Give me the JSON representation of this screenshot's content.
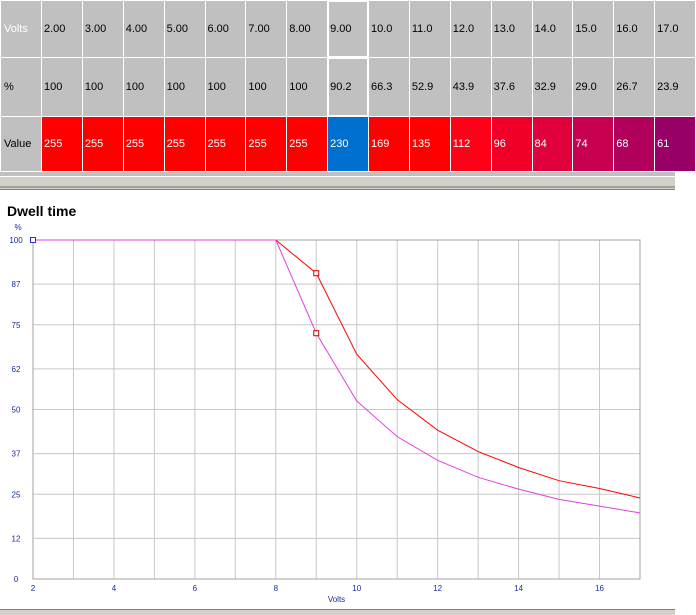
{
  "table": {
    "row_volts": {
      "label": "Volts",
      "cells": [
        "2.00",
        "3.00",
        "4.00",
        "5.00",
        "6.00",
        "7.00",
        "8.00",
        "9.00",
        "10.0",
        "11.0",
        "12.0",
        "13.0",
        "14.0",
        "15.0",
        "16.0",
        "17.0"
      ]
    },
    "row_pct": {
      "label": "%",
      "cells": [
        "100",
        "100",
        "100",
        "100",
        "100",
        "100",
        "100",
        "90.2",
        "66.3",
        "52.9",
        "43.9",
        "37.6",
        "32.9",
        "29.0",
        "26.7",
        "23.9"
      ]
    },
    "row_value": {
      "label": "Value",
      "cells": [
        "255",
        "255",
        "255",
        "255",
        "255",
        "255",
        "255",
        "230",
        "169",
        "135",
        "112",
        "96",
        "84",
        "74",
        "68",
        "61"
      ],
      "colors": [
        "#ff0000",
        "#ff0000",
        "#ff0000",
        "#ff0000",
        "#ff0000",
        "#ff0000",
        "#ff0000",
        "#0070d0",
        "#ff0000",
        "#ff0000",
        "#ff0018",
        "#f00028",
        "#e0003c",
        "#c80050",
        "#b0005c",
        "#980068"
      ]
    },
    "selected_index": 7
  },
  "chart_data": {
    "type": "line",
    "title": "Dwell time",
    "ylabel": "%",
    "xlabel": "Volts",
    "xlim": [
      2,
      17
    ],
    "ylim": [
      0,
      100
    ],
    "x_ticks": [
      2,
      4,
      6,
      8,
      10,
      12,
      14,
      16
    ],
    "x_grid": [
      2,
      3,
      4,
      5,
      6,
      7,
      8,
      9,
      10,
      11,
      12,
      13,
      14,
      15,
      16,
      17
    ],
    "y_ticks": [
      0,
      12,
      25,
      37,
      50,
      62,
      75,
      87,
      100
    ],
    "grid": true,
    "series": [
      {
        "color": "#ff0000",
        "x": [
          2,
          3,
          4,
          5,
          6,
          7,
          8,
          9,
          10,
          11,
          12,
          13,
          14,
          15,
          16,
          17
        ],
        "y": [
          100,
          100,
          100,
          100,
          100,
          100,
          100,
          90.2,
          66.3,
          52.9,
          43.9,
          37.6,
          32.9,
          29.0,
          26.7,
          23.9
        ]
      },
      {
        "color": "#e040e0",
        "x": [
          2,
          3,
          4,
          5,
          6,
          7,
          8,
          9,
          10,
          11,
          12,
          13,
          14,
          15,
          16,
          17
        ],
        "y": [
          100,
          100,
          100,
          100,
          100,
          100,
          100,
          72.5,
          52.5,
          42.0,
          35.0,
          30.0,
          26.5,
          23.5,
          21.5,
          19.5
        ]
      }
    ],
    "markers": [
      {
        "x": 2,
        "y": 100,
        "color": "#3030c0"
      },
      {
        "x": 9,
        "y": 90.2,
        "color": "#d00000"
      },
      {
        "x": 9,
        "y": 72.5,
        "color": "#d00000"
      }
    ]
  }
}
